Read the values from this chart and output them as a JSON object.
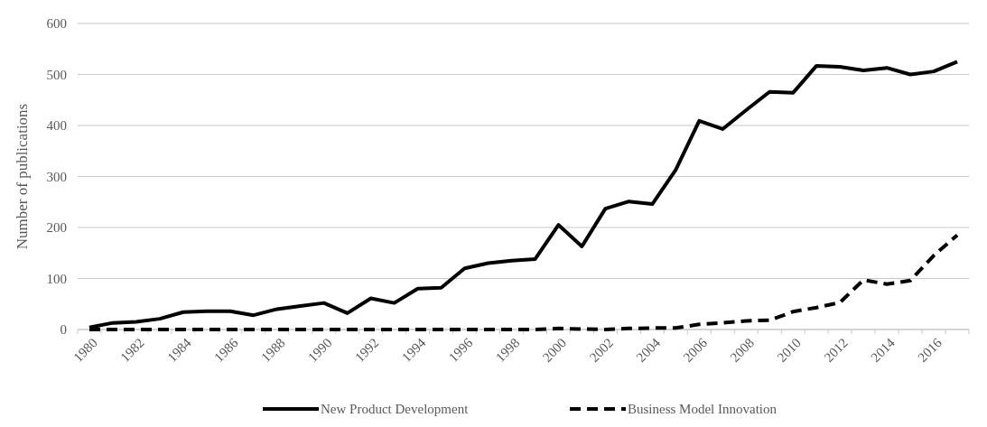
{
  "chart_data": {
    "type": "line",
    "ylabel": "Number of publications",
    "categories": [
      "1980",
      null,
      "1982",
      null,
      "1984",
      null,
      "1986",
      null,
      "1988",
      null,
      "1990",
      null,
      "1992",
      null,
      "1994",
      null,
      "1996",
      null,
      "1998",
      null,
      "2000",
      null,
      "2002",
      null,
      "2004",
      null,
      "2006",
      null,
      "2008",
      null,
      "2010",
      null,
      "2012",
      null,
      "2014",
      null,
      "2016",
      null
    ],
    "series": [
      {
        "name": "New Product Development",
        "color": "#000000",
        "line_style": "solid",
        "values": [
          4,
          13,
          15,
          21,
          34,
          36,
          36,
          28,
          40,
          46,
          52,
          32,
          61,
          52,
          80,
          82,
          120,
          130,
          135,
          138,
          205,
          163,
          237,
          251,
          246,
          313,
          409,
          393,
          430,
          466,
          464,
          517,
          515,
          508,
          513,
          500,
          506,
          525
        ]
      },
      {
        "name": "Business Model Innovation",
        "color": "#000000",
        "line_style": "dashed",
        "values": [
          0,
          0,
          0,
          0,
          0,
          0,
          0,
          0,
          0,
          0,
          0,
          0,
          0,
          0,
          0,
          0,
          0,
          0,
          0,
          0,
          2,
          1,
          0,
          2,
          3,
          3,
          10,
          13,
          17,
          18,
          35,
          43,
          53,
          97,
          89,
          96,
          145,
          185
        ]
      }
    ],
    "ylim": [
      0,
      600
    ],
    "yticks": [
      0,
      100,
      200,
      300,
      400,
      500,
      600
    ],
    "grid": "y",
    "legend": "bottom",
    "marker": "none"
  }
}
